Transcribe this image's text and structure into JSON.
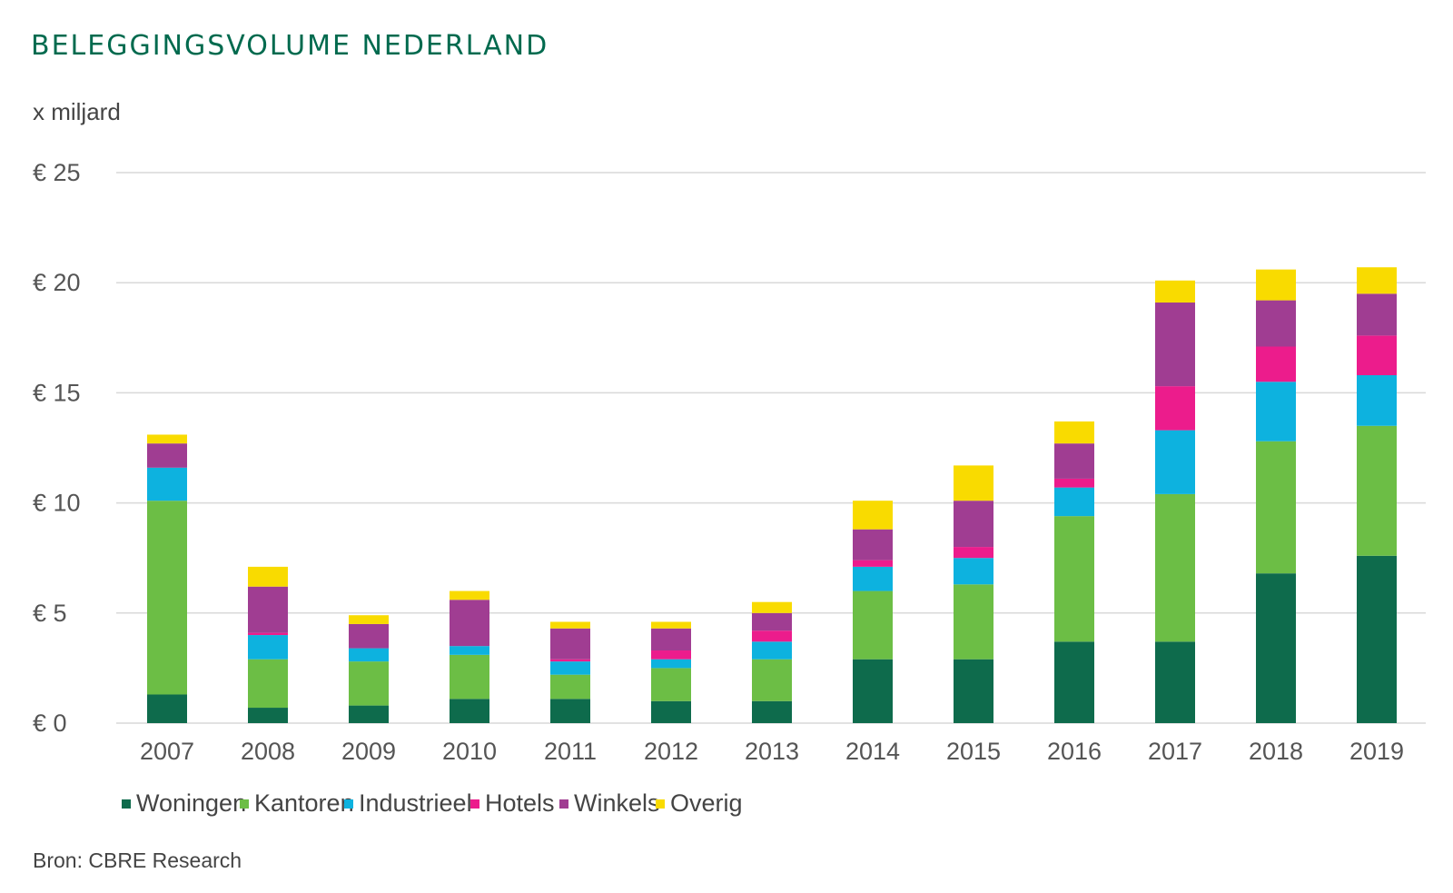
{
  "chart_data": {
    "type": "bar",
    "stacked": true,
    "title": "BELEGGINGSVOLUME NEDERLAND",
    "ylabel": "x miljard",
    "ylim": [
      0,
      25
    ],
    "yticks": [
      0,
      5,
      10,
      15,
      20,
      25
    ],
    "ytick_labels": [
      "€ 0",
      "€ 5",
      "€ 10",
      "€ 15",
      "€ 20",
      "€ 25"
    ],
    "grid": true,
    "legend_position": "bottom-left",
    "categories": [
      "2007",
      "2008",
      "2009",
      "2010",
      "2011",
      "2012",
      "2013",
      "2014",
      "2015",
      "2016",
      "2017",
      "2018",
      "2019"
    ],
    "series": [
      {
        "name": "Woningen",
        "color": "#0E6B4C",
        "values": [
          1.3,
          0.7,
          0.8,
          1.1,
          1.1,
          1.0,
          1.0,
          2.9,
          2.9,
          3.7,
          3.7,
          6.8,
          7.6
        ]
      },
      {
        "name": "Kantoren",
        "color": "#6CBE45",
        "values": [
          8.8,
          2.2,
          2.0,
          2.0,
          1.1,
          1.5,
          1.9,
          3.1,
          3.4,
          5.7,
          6.7,
          6.0,
          5.9
        ]
      },
      {
        "name": "Industrieel",
        "color": "#0DB2DF",
        "values": [
          1.5,
          1.1,
          0.6,
          0.4,
          0.6,
          0.4,
          0.8,
          1.1,
          1.2,
          1.3,
          2.9,
          2.7,
          2.3
        ]
      },
      {
        "name": "Hotels",
        "color": "#EC1C8C",
        "values": [
          0.0,
          0.1,
          0.0,
          0.0,
          0.1,
          0.4,
          0.5,
          0.3,
          0.5,
          0.4,
          2.0,
          1.6,
          1.8
        ]
      },
      {
        "name": "Winkels",
        "color": "#A03D92",
        "values": [
          1.1,
          2.1,
          1.1,
          2.1,
          1.4,
          1.0,
          0.8,
          1.4,
          2.1,
          1.6,
          3.8,
          2.1,
          1.9
        ]
      },
      {
        "name": "Overig",
        "color": "#F9DB00",
        "values": [
          0.4,
          0.9,
          0.4,
          0.4,
          0.3,
          0.3,
          0.5,
          1.3,
          1.6,
          1.0,
          1.0,
          1.4,
          1.2
        ]
      }
    ]
  },
  "source": "Bron: CBRE Research",
  "colors": {
    "title": "#006A4E",
    "grid": "#d9d9d9"
  }
}
